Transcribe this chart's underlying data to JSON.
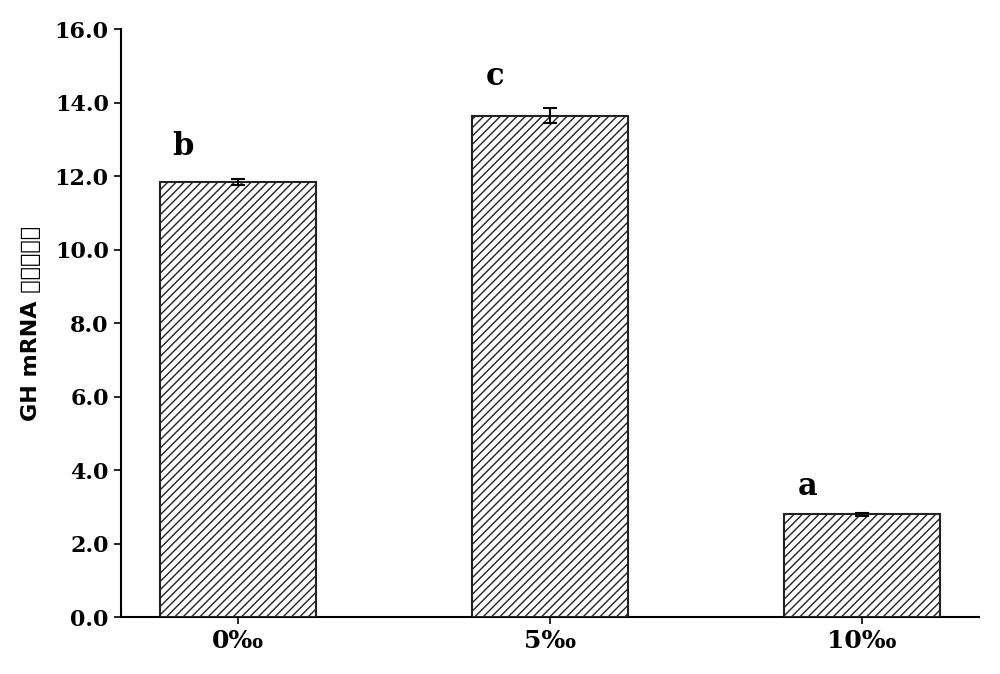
{
  "categories": [
    "0‰",
    "5‰",
    "10‰"
  ],
  "values": [
    11.85,
    13.65,
    2.8
  ],
  "errors": [
    0.08,
    0.2,
    0.05
  ],
  "letters": [
    "b",
    "c",
    "a"
  ],
  "letter_offsets": [
    0.45,
    0.45,
    0.3
  ],
  "bar_color": "white",
  "bar_edgecolor": "#222222",
  "hatch": "////",
  "ylabel": "GH mRNA 相对表达量",
  "ylim": [
    0,
    16.0
  ],
  "yticks": [
    0.0,
    2.0,
    4.0,
    6.0,
    8.0,
    10.0,
    12.0,
    14.0,
    16.0
  ],
  "xlabel_fontsize": 18,
  "ylabel_fontsize": 16,
  "tick_fontsize": 16,
  "letter_fontsize": 22,
  "bar_width": 0.5,
  "figsize": [
    10.0,
    6.74
  ],
  "dpi": 100,
  "background_color": "#ffffff"
}
